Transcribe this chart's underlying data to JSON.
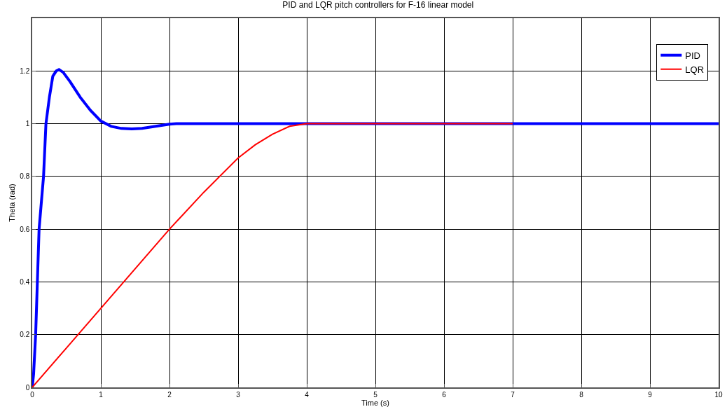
{
  "chart_data": {
    "type": "line",
    "title": "PID and LQR pitch controllers for F-16 linear model",
    "xlabel": "Time (s)",
    "ylabel": "Theta (rad)",
    "xlim": [
      0,
      10
    ],
    "ylim": [
      0,
      1.4
    ],
    "xticks": [
      0,
      1,
      2,
      3,
      4,
      5,
      6,
      7,
      8,
      9,
      10
    ],
    "yticks": [
      0,
      0.2,
      0.4,
      0.6,
      0.8,
      1,
      1.2
    ],
    "grid": true,
    "legend": "top right",
    "line_style": "solid",
    "marker": "none",
    "series": [
      {
        "name": "PID",
        "color": "#0000ff",
        "x": [
          0,
          0.02,
          0.05,
          0.1,
          0.165,
          0.2,
          0.25,
          0.3,
          0.35,
          0.39,
          0.45,
          0.55,
          0.7,
          0.85,
          1.0,
          1.15,
          1.3,
          1.45,
          1.6,
          1.8,
          2.0,
          2.1,
          3,
          4,
          5,
          6,
          7,
          8,
          9,
          10
        ],
        "values": [
          0,
          0.05,
          0.2,
          0.6,
          0.8,
          1.0,
          1.1,
          1.18,
          1.2,
          1.205,
          1.195,
          1.16,
          1.1,
          1.05,
          1.01,
          0.99,
          0.982,
          0.98,
          0.982,
          0.99,
          0.998,
          1,
          1,
          1,
          1,
          1,
          1,
          1,
          1,
          1
        ]
      },
      {
        "name": "LQR",
        "color": "#ff0000",
        "x": [
          0,
          0.5,
          1,
          1.5,
          2,
          2.5,
          3,
          3.25,
          3.5,
          3.75,
          4,
          5,
          6,
          7
        ],
        "values": [
          0,
          0.15,
          0.3,
          0.45,
          0.6,
          0.74,
          0.87,
          0.92,
          0.96,
          0.99,
          1,
          1,
          1,
          1
        ]
      }
    ]
  }
}
